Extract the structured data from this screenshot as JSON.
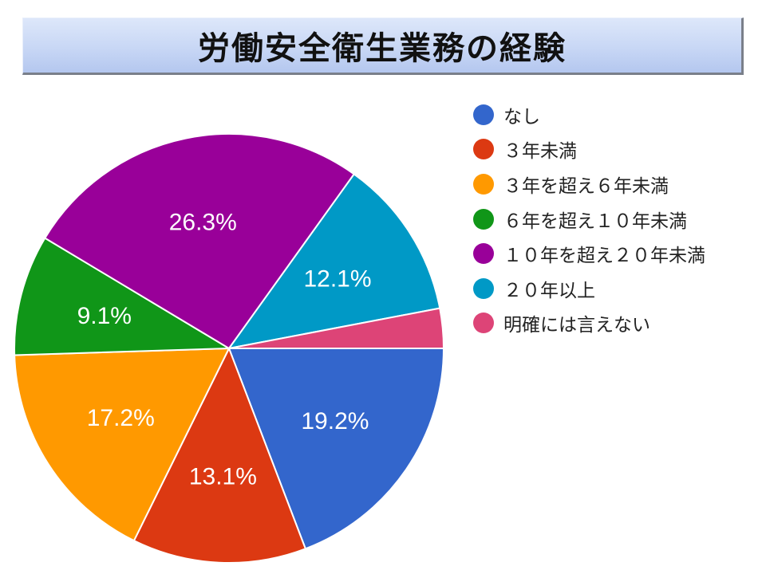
{
  "title": "労働安全衛生業務の経験",
  "chart_data": {
    "type": "pie",
    "title": "労働安全衛生業務の経験",
    "legend_position": "right",
    "start_angle_deg": 0,
    "direction": "clockwise",
    "slices": [
      {
        "name": "なし",
        "value": 19.2,
        "label": "19.2%",
        "color": "#3366cc"
      },
      {
        "name": "３年未満",
        "value": 13.1,
        "label": "13.1%",
        "color": "#dc3912"
      },
      {
        "name": "３年を超え６年未満",
        "value": 17.2,
        "label": "17.2%",
        "color": "#ff9900"
      },
      {
        "name": "６年を超え１０年未満",
        "value": 9.1,
        "label": "9.1%",
        "color": "#109618"
      },
      {
        "name": "１０年を超え２０年未満",
        "value": 26.3,
        "label": "26.3%",
        "color": "#990099"
      },
      {
        "name": "２０年以上",
        "value": 12.1,
        "label": "12.1%",
        "color": "#0099c6"
      },
      {
        "name": "明確には言えない",
        "value": 3.0,
        "label": "",
        "color": "#dd4477"
      }
    ]
  }
}
